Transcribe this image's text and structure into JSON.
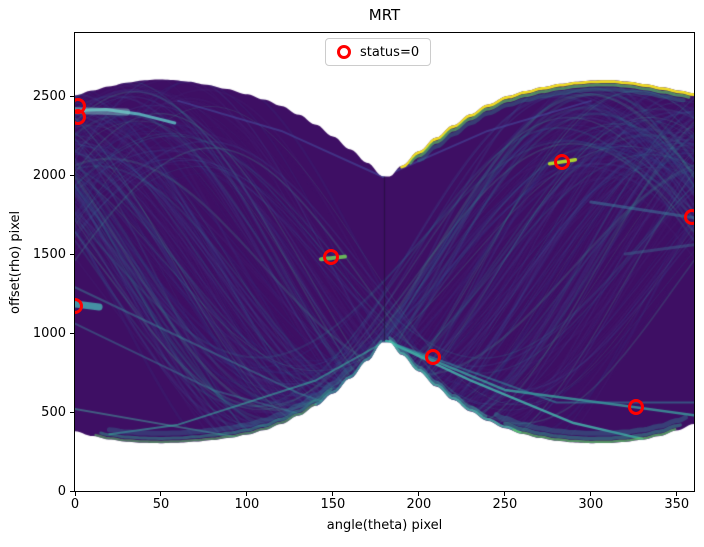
{
  "title": "MRT",
  "legend": {
    "label": "status=0",
    "marker_color": "#ff0000"
  },
  "axes": {
    "xlabel": "angle(theta) pixel",
    "ylabel": "offset(rho) pixel",
    "xticks": [
      0,
      50,
      100,
      150,
      200,
      250,
      300,
      350
    ],
    "yticks": [
      0,
      500,
      1000,
      1500,
      2000,
      2500
    ]
  },
  "chart_data": {
    "type": "scatter",
    "title": "MRT",
    "xlabel": "angle(theta) pixel",
    "ylabel": "offset(rho) pixel",
    "xlim": [
      0,
      360
    ],
    "ylim": [
      0,
      2900
    ],
    "legend_position": "upper center",
    "grid": false,
    "series": [
      {
        "name": "status=0",
        "marker": "open-circle",
        "color": "#ff0000",
        "points": [
          [
            2,
            2438
          ],
          [
            2,
            2368
          ],
          [
            0,
            1172
          ],
          [
            149,
            1481
          ],
          [
            208,
            849
          ],
          [
            283,
            2086
          ],
          [
            326,
            529
          ],
          [
            359,
            1732
          ]
        ]
      }
    ],
    "background": {
      "description": "dense overlapping sinusoids of a Hough/Radon transform accumulator (viridis colormap); bow-tie band crossing near theta=180",
      "base_color": "#3e0f64",
      "envelope_top": [
        [
          0,
          2505
        ],
        [
          10,
          2535
        ],
        [
          20,
          2562
        ],
        [
          30,
          2585
        ],
        [
          40,
          2600
        ],
        [
          48,
          2606
        ],
        [
          56,
          2603
        ],
        [
          66,
          2592
        ],
        [
          76,
          2573
        ],
        [
          88,
          2546
        ],
        [
          100,
          2512
        ],
        [
          110,
          2478
        ],
        [
          120,
          2438
        ],
        [
          130,
          2383
        ],
        [
          140,
          2320
        ],
        [
          150,
          2245
        ],
        [
          160,
          2163
        ],
        [
          170,
          2078
        ],
        [
          179,
          1992
        ],
        [
          183,
          1992
        ],
        [
          190,
          2060
        ],
        [
          200,
          2152
        ],
        [
          210,
          2238
        ],
        [
          220,
          2316
        ],
        [
          230,
          2386
        ],
        [
          240,
          2448
        ],
        [
          252,
          2502
        ],
        [
          262,
          2533
        ],
        [
          272,
          2558
        ],
        [
          282,
          2578
        ],
        [
          292,
          2592
        ],
        [
          302,
          2600
        ],
        [
          312,
          2601
        ],
        [
          322,
          2592
        ],
        [
          332,
          2576
        ],
        [
          342,
          2556
        ],
        [
          352,
          2535
        ],
        [
          360,
          2518
        ]
      ],
      "envelope_bottom": [
        [
          0,
          378
        ],
        [
          10,
          348
        ],
        [
          20,
          326
        ],
        [
          30,
          312
        ],
        [
          40,
          305
        ],
        [
          50,
          303
        ],
        [
          60,
          306
        ],
        [
          70,
          313
        ],
        [
          80,
          323
        ],
        [
          90,
          337
        ],
        [
          100,
          357
        ],
        [
          110,
          385
        ],
        [
          120,
          425
        ],
        [
          130,
          477
        ],
        [
          140,
          540
        ],
        [
          150,
          617
        ],
        [
          160,
          713
        ],
        [
          170,
          825
        ],
        [
          179,
          942
        ],
        [
          183,
          942
        ],
        [
          190,
          862
        ],
        [
          200,
          757
        ],
        [
          210,
          662
        ],
        [
          220,
          577
        ],
        [
          230,
          504
        ],
        [
          240,
          444
        ],
        [
          250,
          398
        ],
        [
          260,
          362
        ],
        [
          270,
          336
        ],
        [
          280,
          318
        ],
        [
          290,
          308
        ],
        [
          300,
          303
        ],
        [
          310,
          304
        ],
        [
          320,
          311
        ],
        [
          330,
          325
        ],
        [
          340,
          348
        ],
        [
          350,
          383
        ],
        [
          360,
          425
        ]
      ],
      "texture": {
        "seed": 11,
        "count": 190,
        "theta0_spread": 80,
        "amp_min": 680,
        "amp_max": 1230,
        "center_base": 1400,
        "center_jitter": 150,
        "palette": [
          {
            "color": "rgba(72,40,120,0.20)",
            "weight": 0.4
          },
          {
            "color": "rgba(52,60,132,0.18)",
            "weight": 0.22
          },
          {
            "color": "rgba(58,92,148,0.20)",
            "weight": 0.16
          },
          {
            "color": "rgba(47,118,142,0.22)",
            "weight": 0.14
          },
          {
            "color": "rgba(66,168,144,0.22)",
            "weight": 0.08
          }
        ]
      },
      "rims": [
        {
          "edge": "top",
          "from": 190,
          "to": 360,
          "inset": 8,
          "color": "rgba(249,231,33,0.95)",
          "width": 3
        },
        {
          "edge": "top",
          "from": 195,
          "to": 358,
          "inset": 30,
          "color": "rgba(93,201,99,0.65)",
          "width": 3
        },
        {
          "edge": "top",
          "from": 200,
          "to": 355,
          "inset": 58,
          "color": "rgba(42,150,145,0.35)",
          "width": 4
        },
        {
          "edge": "bottom",
          "from": 12,
          "to": 140,
          "inset": 8,
          "color": "rgba(93,201,99,0.55)",
          "width": 2.5
        },
        {
          "edge": "bottom",
          "from": 15,
          "to": 150,
          "inset": 30,
          "color": "rgba(47,160,140,0.5)",
          "width": 3
        },
        {
          "edge": "bottom",
          "from": 20,
          "to": 160,
          "inset": 62,
          "color": "rgba(48,125,148,0.35)",
          "width": 5
        },
        {
          "edge": "bottom",
          "from": 140,
          "to": 179,
          "inset": 10,
          "color": "rgba(70,190,170,0.55)",
          "width": 2.5
        },
        {
          "edge": "bottom",
          "from": 183,
          "to": 260,
          "inset": 10,
          "color": "rgba(80,200,175,0.75)",
          "width": 2.5
        },
        {
          "edge": "bottom",
          "from": 183,
          "to": 240,
          "inset": 28,
          "color": "rgba(60,170,160,0.5)",
          "width": 3
        },
        {
          "edge": "bottom",
          "from": 255,
          "to": 350,
          "inset": 8,
          "color": "rgba(93,201,99,0.7)",
          "width": 2.5
        },
        {
          "edge": "bottom",
          "from": 250,
          "to": 352,
          "inset": 30,
          "color": "rgba(47,160,140,0.5)",
          "width": 3.5
        },
        {
          "edge": "bottom",
          "from": 245,
          "to": 355,
          "inset": 62,
          "color": "rgba(48,135,148,0.4)",
          "width": 5
        }
      ],
      "streaks": [
        {
          "points": [
            [
              0,
              2410
            ],
            [
              18,
              2415
            ],
            [
              38,
              2385
            ],
            [
              58,
              2330
            ]
          ],
          "color": "rgba(95,190,195,0.85)",
          "width": 3
        },
        {
          "points": [
            [
              0,
              2410
            ],
            [
              30,
              2400
            ]
          ],
          "color": "rgba(130,210,200,0.45)",
          "width": 7
        },
        {
          "points": [
            [
              0,
              1185
            ],
            [
              14,
              1165
            ]
          ],
          "color": "rgba(70,160,170,0.9)",
          "width": 7
        },
        {
          "points": [
            [
              0,
              1290
            ],
            [
              60,
              980
            ],
            [
              130,
              620
            ],
            [
              170,
              470
            ]
          ],
          "color": "rgba(60,130,150,0.5)",
          "width": 2
        },
        {
          "points": [
            [
              0,
              1060
            ],
            [
              80,
              640
            ],
            [
              140,
              460
            ]
          ],
          "color": "rgba(60,130,150,0.45)",
          "width": 2
        },
        {
          "points": [
            [
              0,
              520
            ],
            [
              100,
              330
            ]
          ],
          "color": "rgba(70,170,160,0.5)",
          "width": 2
        },
        {
          "points": [
            [
              143,
              1468
            ],
            [
              157,
              1484
            ]
          ],
          "color": "rgba(110,200,90,0.9)",
          "width": 4
        },
        {
          "points": [
            [
              276,
              2072
            ],
            [
              291,
              2098
            ]
          ],
          "color": "rgba(181,222,43,0.95)",
          "width": 3.5
        },
        {
          "points": [
            [
              181,
              950
            ],
            [
              230,
              700
            ],
            [
              290,
              430
            ],
            [
              330,
              330
            ]
          ],
          "color": "rgba(70,190,175,0.8)",
          "width": 2.5
        },
        {
          "points": [
            [
              181,
              950
            ],
            [
              250,
              640
            ],
            [
              326,
              530
            ],
            [
              360,
              480
            ]
          ],
          "color": "rgba(60,180,165,0.7)",
          "width": 2.5
        },
        {
          "points": [
            [
              181,
              950
            ],
            [
              280,
              560
            ],
            [
              360,
              560
            ]
          ],
          "color": "rgba(50,150,160,0.5)",
          "width": 2
        },
        {
          "points": [
            [
              181,
              950
            ],
            [
              140,
              700
            ],
            [
              60,
              420
            ],
            [
              20,
              360
            ]
          ],
          "color": "rgba(60,170,160,0.6)",
          "width": 2
        },
        {
          "points": [
            [
              179,
              1990
            ],
            [
              240,
              2280
            ],
            [
              300,
              2470
            ]
          ],
          "color": "rgba(70,80,160,0.55)",
          "width": 2
        },
        {
          "points": [
            [
              179,
              1990
            ],
            [
              120,
              2280
            ],
            [
              60,
              2470
            ]
          ],
          "color": "rgba(70,80,160,0.55)",
          "width": 2
        },
        {
          "points": [
            [
              300,
              1830
            ],
            [
              360,
              1730
            ]
          ],
          "color": "rgba(60,130,160,0.5)",
          "width": 3
        },
        {
          "points": [
            [
              320,
              1500
            ],
            [
              360,
              1560
            ]
          ],
          "color": "rgba(60,120,150,0.4)",
          "width": 3
        },
        {
          "points": [
            [
              180,
              950
            ],
            [
              180,
              1990
            ]
          ],
          "color": "rgba(20,10,40,0.45)",
          "width": 1.2
        }
      ]
    }
  }
}
